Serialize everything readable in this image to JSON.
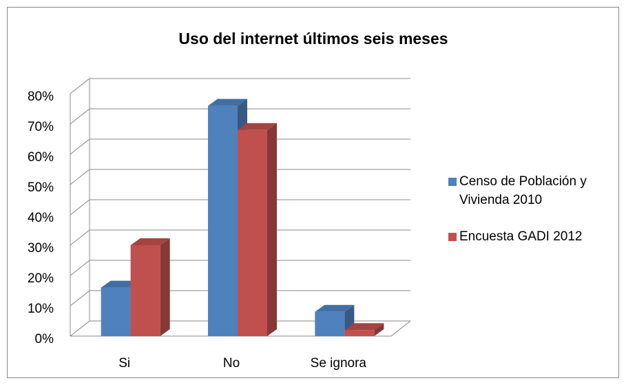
{
  "chart_data": {
    "type": "bar3d",
    "title": "Uso del internet últimos seis meses",
    "categories": [
      "Si",
      "No",
      "Se ignora"
    ],
    "series": [
      {
        "name": "Censo de Población y Vivienda 2010",
        "color": "#4f81bd",
        "values": [
          16,
          76,
          8
        ]
      },
      {
        "name": "Encuesta GADI 2012",
        "color": "#c0504d",
        "values": [
          30,
          68,
          2
        ]
      }
    ],
    "ylim": [
      0,
      80
    ],
    "yticks": [
      {
        "value": 0,
        "label": "0%"
      },
      {
        "value": 10,
        "label": "10%"
      },
      {
        "value": 20,
        "label": "20%"
      },
      {
        "value": 30,
        "label": "30%"
      },
      {
        "value": 40,
        "label": "40%"
      },
      {
        "value": 50,
        "label": "50%"
      },
      {
        "value": 60,
        "label": "60%"
      },
      {
        "value": 70,
        "label": "70%"
      },
      {
        "value": 80,
        "label": "80%"
      }
    ],
    "grid": true,
    "legend": "right"
  }
}
